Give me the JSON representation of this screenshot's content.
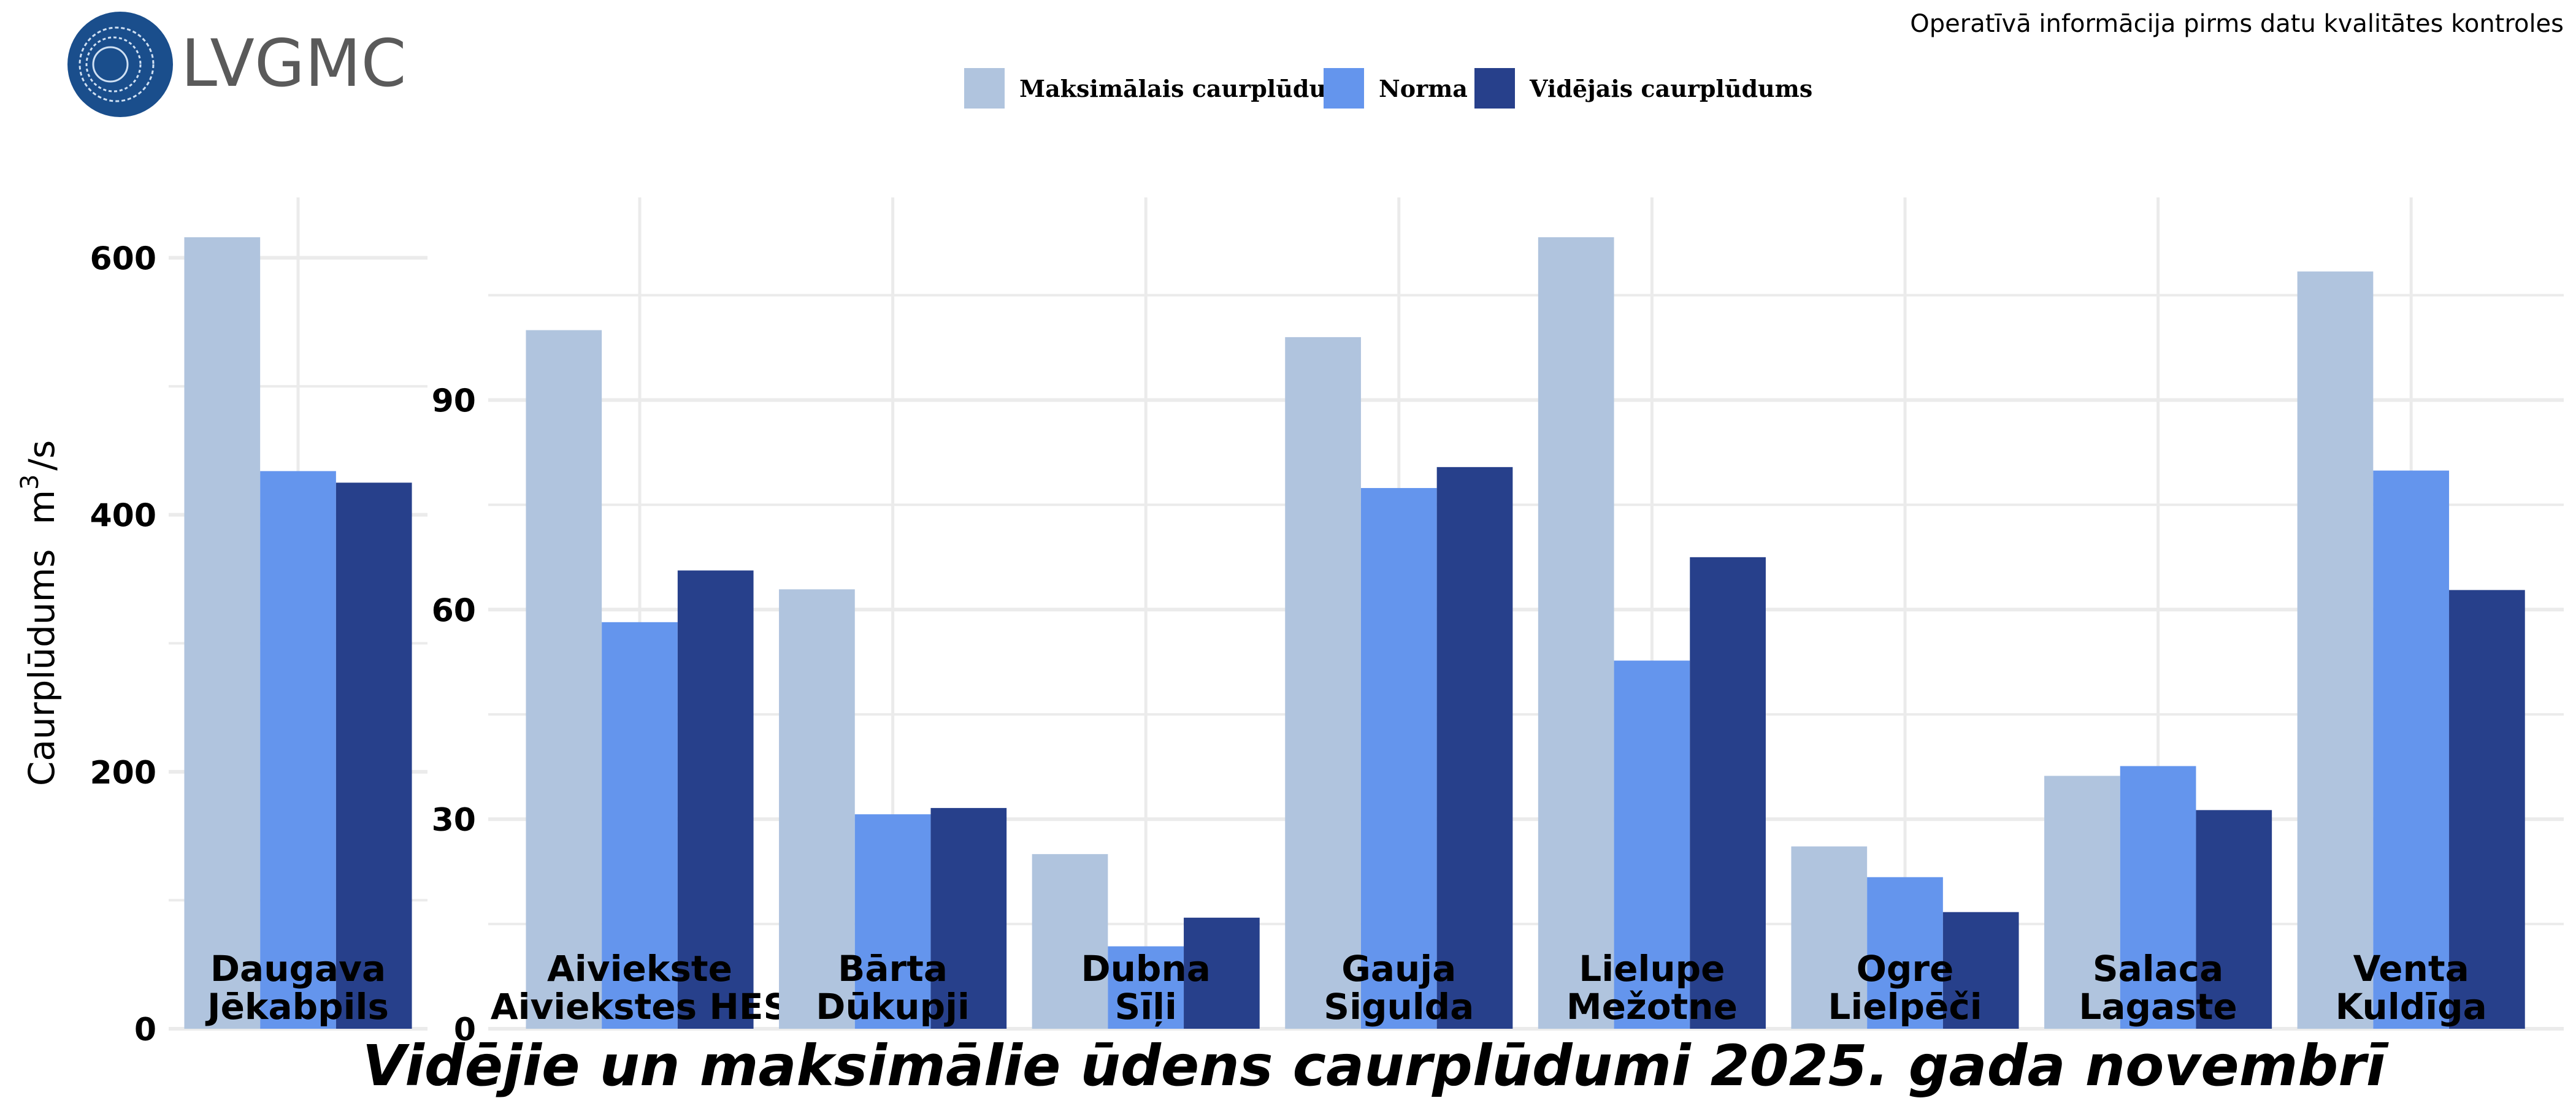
{
  "header": {
    "logo_text": "LVGMC",
    "note": "Operatīvā informācija pirms datu kvalitātes kontroles"
  },
  "colors": {
    "max": "#b0c4de",
    "norma": "#6495ed",
    "avg": "#27408b",
    "grid": "#ebebeb"
  },
  "chart_data": {
    "type": "bar",
    "title": "Vidējie un maksimālie ūdens caurplūdumi 2025. gada novembrī",
    "ylabel": "Caurplūdums",
    "yunit_base": "m",
    "yunit_sup": "3",
    "yunit_tail": "/s",
    "legend": [
      "Maksimālais caurplūdums",
      "Norma",
      "Vidējais caurplūdums"
    ],
    "legend_position": "top",
    "grid": true,
    "panels": [
      {
        "ylim": [
          0,
          647
        ],
        "yticks": [
          "0",
          "200",
          "400",
          "600"
        ],
        "ytick_values": [
          0,
          200,
          400,
          600
        ],
        "categories": [
          [
            "Daugava",
            "Jēkabpils"
          ]
        ],
        "series": [
          {
            "name": "Maksimālais caurplūdums",
            "values": [
              616
            ]
          },
          {
            "name": "Norma",
            "values": [
              434
            ]
          },
          {
            "name": "Vidējais caurplūdums",
            "values": [
              425
            ]
          }
        ]
      },
      {
        "ylim": [
          0,
          119
        ],
        "yticks": [
          "0",
          "30",
          "60",
          "90"
        ],
        "ytick_values": [
          0,
          30,
          60,
          90
        ],
        "categories": [
          [
            "Aiviekste",
            "Aiviekstes HES"
          ],
          [
            "Bārta",
            "Dūkupji"
          ],
          [
            "Dubna",
            "Sīļi"
          ],
          [
            "Gauja",
            "Sigulda"
          ],
          [
            "Lielupe",
            "Mežotne"
          ],
          [
            "Ogre",
            "Lielpēči"
          ],
          [
            "Salaca",
            "Lagaste"
          ],
          [
            "Venta",
            "Kuldīga"
          ]
        ],
        "series": [
          {
            "name": "Maksimālais caurplūdums",
            "values": [
              100.0,
              62.9,
              25.0,
              99.0,
              113.3,
              26.1,
              36.2,
              108.4
            ]
          },
          {
            "name": "Norma",
            "values": [
              58.2,
              30.7,
              11.8,
              77.4,
              52.7,
              21.7,
              37.6,
              79.9
            ]
          },
          {
            "name": "Vidējais caurplūdums",
            "values": [
              65.6,
              31.6,
              15.9,
              80.4,
              67.5,
              16.7,
              31.3,
              62.8
            ]
          }
        ]
      }
    ]
  }
}
